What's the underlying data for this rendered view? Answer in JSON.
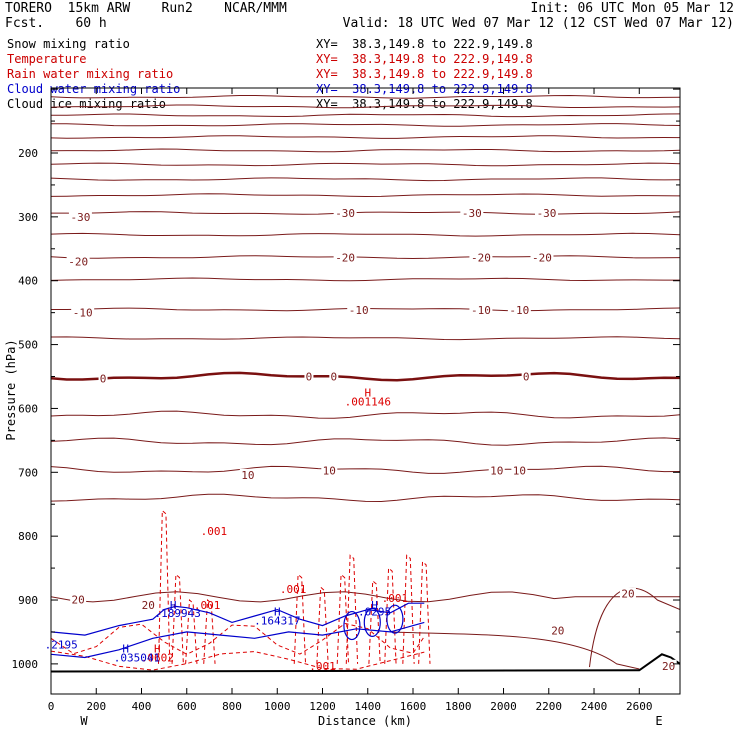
{
  "header": {
    "model": "TORERO  15km ARW    Run2",
    "org": "NCAR/MMM",
    "fcst": "Fcst.    60 h",
    "init": "Init: 06 UTC Mon 05 Mar 12",
    "valid": "Valid: 18 UTC Wed 07 Mar 12 (12 CST Wed 07 Mar 12)"
  },
  "legend": [
    {
      "label": "Snow mixing ratio",
      "xy": "XY=  38.3,149.8 to 222.9,149.8",
      "color": "#000000"
    },
    {
      "label": "Temperature",
      "xy": "XY=  38.3,149.8 to 222.9,149.8",
      "color": "#cc0000"
    },
    {
      "label": "Rain water mixing ratio",
      "xy": "XY=  38.3,149.8 to 222.9,149.8",
      "color": "#cc0000"
    },
    {
      "label": "Cloud water mixing ratio",
      "xy": "XY=  38.3,149.8 to 222.9,149.8",
      "color": "#0000cc"
    },
    {
      "label": "Cloud ice mixing ratio",
      "xy": "XY=  38.3,149.8 to 222.9,149.8",
      "color": "#000000"
    }
  ],
  "colors": {
    "temperature": "#7a1a1a",
    "freezing": "#7a1010",
    "rain": "#dd0000",
    "cloud_water": "#0000cc",
    "ground": "#000000"
  },
  "chart_data": {
    "type": "contour-cross-section",
    "xlabel": "Distance (km)",
    "ylabel": "Pressure (hPa)",
    "xlim": [
      0,
      2780
    ],
    "ylim": [
      1035,
      100
    ],
    "x_ticks": [
      0,
      200,
      400,
      600,
      800,
      1000,
      1200,
      1400,
      1600,
      1800,
      2000,
      2200,
      2400,
      2600
    ],
    "y_ticks": [
      200,
      300,
      400,
      500,
      600,
      700,
      800,
      900,
      1000
    ],
    "x_end_labels": {
      "left": "W",
      "right": "E"
    },
    "isotherms": [
      {
        "label": "",
        "levels": [
          {
            "p": 112,
            "dp": []
          },
          {
            "p": 127,
            "dp": []
          },
          {
            "p": 141,
            "dp": []
          },
          {
            "p": 156,
            "dp": []
          },
          {
            "p": 175,
            "dp": []
          },
          {
            "p": 196,
            "dp": []
          },
          {
            "p": 218,
            "dp": []
          },
          {
            "p": 241,
            "dp": []
          },
          {
            "p": 266,
            "dp": []
          }
        ]
      },
      {
        "label": "-30",
        "p": 294
      },
      {
        "label": "",
        "p": 328
      },
      {
        "label": "-20",
        "p": 363
      },
      {
        "label": "",
        "p": 398
      },
      {
        "label": "-10",
        "p": 445
      },
      {
        "label": "",
        "p": 490
      },
      {
        "label": "0",
        "p": 550
      },
      {
        "label": "",
        "p": 610
      },
      {
        "label": "",
        "p": 652
      },
      {
        "label": "10",
        "p": 696
      },
      {
        "label": "",
        "p": 740
      }
    ],
    "isotherm_labels": [
      {
        "text": "-30",
        "x": 130,
        "p": 300
      },
      {
        "text": "-30",
        "x": 1300,
        "p": 294
      },
      {
        "text": "-30",
        "x": 1860,
        "p": 294
      },
      {
        "text": "-30",
        "x": 2190,
        "p": 294
      },
      {
        "text": "-20",
        "x": 120,
        "p": 370
      },
      {
        "text": "-20",
        "x": 1300,
        "p": 364
      },
      {
        "text": "-20",
        "x": 1900,
        "p": 364
      },
      {
        "text": "-20",
        "x": 2170,
        "p": 364
      },
      {
        "text": "-10",
        "x": 140,
        "p": 450
      },
      {
        "text": "-10",
        "x": 1360,
        "p": 446
      },
      {
        "text": "-10",
        "x": 1900,
        "p": 446
      },
      {
        "text": "-10",
        "x": 2070,
        "p": 446
      },
      {
        "text": "0",
        "x": 230,
        "p": 553
      },
      {
        "text": "0",
        "x": 1140,
        "p": 550
      },
      {
        "text": "0",
        "x": 1250,
        "p": 550
      },
      {
        "text": "0",
        "x": 2100,
        "p": 550
      },
      {
        "text": "10",
        "x": 870,
        "p": 704
      },
      {
        "text": "10",
        "x": 1230,
        "p": 697
      },
      {
        "text": "10",
        "x": 1970,
        "p": 697
      },
      {
        "text": "10",
        "x": 2070,
        "p": 697
      },
      {
        "text": "20",
        "x": 120,
        "p": 899
      },
      {
        "text": "20",
        "x": 430,
        "p": 908
      },
      {
        "text": "20",
        "x": 2240,
        "p": 948
      },
      {
        "text": "20",
        "x": 2550,
        "p": 890
      },
      {
        "text": "20",
        "x": 2730,
        "p": 1003
      }
    ],
    "rain_labels": [
      {
        "text": "H",
        "x": 1400,
        "p": 575
      },
      {
        "text": ".001146",
        "x": 1400,
        "p": 589
      },
      {
        "text": ".001",
        "x": 720,
        "p": 792
      },
      {
        "text": ".001",
        "x": 1070,
        "p": 883
      },
      {
        "text": ".001",
        "x": 690,
        "p": 908
      },
      {
        "text": ".001",
        "x": 1520,
        "p": 897
      },
      {
        "text": ".001",
        "x": 1200,
        "p": 1003
      },
      {
        "text": "H",
        "x": 470,
        "p": 976
      },
      {
        "text": ".0602",
        "x": 470,
        "p": 990
      }
    ],
    "cloud_labels": [
      {
        "text": "H",
        "x": 540,
        "p": 908
      },
      {
        "text": ".189943",
        "x": 560,
        "p": 920
      },
      {
        "text": "H",
        "x": 1000,
        "p": 918
      },
      {
        "text": ".164317",
        "x": 1000,
        "p": 932
      },
      {
        "text": "H",
        "x": 1430,
        "p": 908
      },
      {
        "text": ".0295",
        "x": 1430,
        "p": 918
      },
      {
        "text": ".2195",
        "x": 45,
        "p": 970
      },
      {
        "text": "H",
        "x": 330,
        "p": 976
      },
      {
        "text": ".035041",
        "x": 380,
        "p": 990
      }
    ]
  }
}
